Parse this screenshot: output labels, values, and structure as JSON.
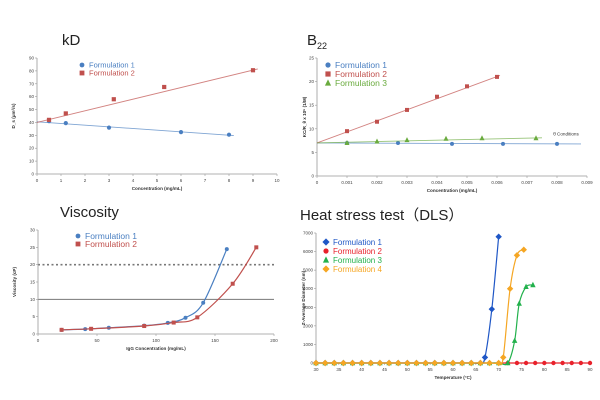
{
  "chart_data": [
    {
      "type": "scatter",
      "title": "kD",
      "xlabel": "Concentration (mg/mL)",
      "ylabel": "D_s (μm²/s)",
      "xlim": [
        0,
        10
      ],
      "ylim": [
        0,
        90
      ],
      "xticks": [
        "0",
        "1",
        "2",
        "3",
        "4",
        "5",
        "6",
        "7",
        "8",
        "9",
        "10"
      ],
      "yticks": [
        "0",
        "10",
        "20",
        "30",
        "40",
        "50",
        "60",
        "70",
        "80",
        "90"
      ],
      "grid": false,
      "legend": "top-left",
      "series": [
        {
          "name": "Formulation 1",
          "color": "#4a7fc1",
          "marker": "circle",
          "points": [
            [
              0.5,
              41
            ],
            [
              1.2,
              39.5
            ],
            [
              3,
              36
            ],
            [
              6,
              32.5
            ],
            [
              8,
              30.5
            ]
          ],
          "trend": [
            [
              0,
              40.5
            ],
            [
              8.2,
              29.8
            ]
          ]
        },
        {
          "name": "Formulation 2",
          "color": "#c0504d",
          "marker": "square",
          "points": [
            [
              0.5,
              42
            ],
            [
              1.2,
              47
            ],
            [
              3.2,
              58
            ],
            [
              5.3,
              67.5
            ],
            [
              9,
              80.5
            ]
          ],
          "trend": [
            [
              0,
              40
            ],
            [
              9.2,
              81.5
            ]
          ]
        }
      ]
    },
    {
      "type": "scatter",
      "title": "B",
      "title_sub": "22",
      "xlabel": "Concentration (mg/mL)",
      "ylabel": "KC/R_θ x 10⁶ (1/M)",
      "xlim": [
        0,
        0.009
      ],
      "ylim": [
        0,
        25
      ],
      "xticks": [
        "0",
        "0.001",
        "0.002",
        "0.003",
        "0.004",
        "0.005",
        "0.006",
        "0.007",
        "0.008",
        "0.009"
      ],
      "yticks": [
        "0",
        "5",
        "10",
        "15",
        "20",
        "25"
      ],
      "grid": false,
      "legend": "top-left",
      "annotation": "θ Conditions",
      "series": [
        {
          "name": "Formulation 1",
          "color": "#4a7fc1",
          "marker": "circle",
          "points": [
            [
              0.001,
              7
            ],
            [
              0.0027,
              7
            ],
            [
              0.0045,
              6.8
            ],
            [
              0.0062,
              6.8
            ],
            [
              0.008,
              6.8
            ]
          ],
          "trend": [
            [
              0,
              7
            ],
            [
              0.0088,
              6.8
            ]
          ]
        },
        {
          "name": "Formulation 2",
          "color": "#c0504d",
          "marker": "square",
          "points": [
            [
              0.001,
              9.5
            ],
            [
              0.002,
              11.5
            ],
            [
              0.003,
              14
            ],
            [
              0.004,
              16.8
            ],
            [
              0.005,
              19
            ],
            [
              0.006,
              21
            ]
          ],
          "trend": [
            [
              0,
              7
            ],
            [
              0.0061,
              21.3
            ]
          ]
        },
        {
          "name": "Formulation 3",
          "color": "#6aab3e",
          "marker": "triangle",
          "points": [
            [
              0.001,
              7
            ],
            [
              0.002,
              7.3
            ],
            [
              0.003,
              7.6
            ],
            [
              0.0043,
              7.9
            ],
            [
              0.0055,
              8
            ],
            [
              0.0073,
              8
            ]
          ],
          "trend": [
            [
              0,
              7
            ],
            [
              0.0075,
              8.1
            ]
          ]
        }
      ]
    },
    {
      "type": "line",
      "title": "Viscosity",
      "xlabel": "IgG Concentration (mg/mL)",
      "ylabel": "Viscosity (cP)",
      "xlim": [
        0,
        200
      ],
      "ylim": [
        0,
        30
      ],
      "xticks": [
        "0",
        "50",
        "100",
        "150",
        "200"
      ],
      "yticks": [
        "0",
        "5",
        "10",
        "15",
        "20",
        "25",
        "30"
      ],
      "grid": false,
      "legend": "top-left",
      "reference_lines": [
        {
          "y": 20,
          "style": "dotted"
        },
        {
          "y": 10,
          "style": "solid"
        }
      ],
      "series": [
        {
          "name": "Formulation 1",
          "color": "#4a7fc1",
          "marker": "circle",
          "points": [
            [
              20,
              1.2
            ],
            [
              40,
              1.4
            ],
            [
              60,
              1.8
            ],
            [
              90,
              2.4
            ],
            [
              110,
              3.2
            ],
            [
              125,
              4.7
            ],
            [
              140,
              9
            ],
            [
              160,
              24.5
            ]
          ]
        },
        {
          "name": "Formulation 2",
          "color": "#c0504d",
          "marker": "square",
          "points": [
            [
              20,
              1.2
            ],
            [
              45,
              1.5
            ],
            [
              90,
              2.3
            ],
            [
              115,
              3.3
            ],
            [
              135,
              4.8
            ],
            [
              165,
              14.5
            ],
            [
              185,
              25
            ]
          ]
        }
      ]
    },
    {
      "type": "line",
      "title": "Heat stress test（DLS）",
      "xlabel": "Temperature (°C)",
      "ylabel": "Z-Average Diameter (nm)",
      "xlim": [
        30,
        90
      ],
      "ylim": [
        0,
        7000
      ],
      "xticks": [
        "30",
        "35",
        "40",
        "45",
        "50",
        "55",
        "60",
        "65",
        "70",
        "75",
        "80",
        "85",
        "90"
      ],
      "yticks": [
        "0",
        "1000",
        "2000",
        "3000",
        "4000",
        "5000",
        "6000",
        "7000"
      ],
      "grid": false,
      "legend": "top-left",
      "series": [
        {
          "name": "Formulation 1",
          "color": "#1f57c6",
          "marker": "diamond",
          "points": [
            [
              30,
              0
            ],
            [
              32,
              0
            ],
            [
              34,
              0
            ],
            [
              36,
              0
            ],
            [
              38,
              0
            ],
            [
              40,
              0
            ],
            [
              42,
              0
            ],
            [
              44,
              0
            ],
            [
              46,
              0
            ],
            [
              48,
              0
            ],
            [
              50,
              0
            ],
            [
              52,
              0
            ],
            [
              54,
              0
            ],
            [
              56,
              0
            ],
            [
              58,
              0
            ],
            [
              60,
              0
            ],
            [
              62,
              0
            ],
            [
              64,
              0
            ],
            [
              66,
              0
            ],
            [
              67,
              300
            ],
            [
              68.5,
              2900
            ],
            [
              70,
              6800
            ]
          ]
        },
        {
          "name": "Formulation 2",
          "color": "#e8212b",
          "marker": "circle",
          "points": [
            [
              30,
              0
            ],
            [
              32,
              0
            ],
            [
              34,
              0
            ],
            [
              36,
              0
            ],
            [
              38,
              0
            ],
            [
              40,
              0
            ],
            [
              42,
              0
            ],
            [
              44,
              0
            ],
            [
              46,
              0
            ],
            [
              48,
              0
            ],
            [
              50,
              0
            ],
            [
              52,
              0
            ],
            [
              54,
              0
            ],
            [
              56,
              0
            ],
            [
              58,
              0
            ],
            [
              60,
              0
            ],
            [
              62,
              0
            ],
            [
              64,
              0
            ],
            [
              66,
              0
            ],
            [
              68,
              0
            ],
            [
              70,
              0
            ],
            [
              72,
              0
            ],
            [
              74,
              0
            ],
            [
              76,
              0
            ],
            [
              78,
              0
            ],
            [
              80,
              0
            ],
            [
              82,
              0
            ],
            [
              84,
              0
            ],
            [
              86,
              0
            ],
            [
              88,
              0
            ],
            [
              90,
              0
            ]
          ]
        },
        {
          "name": "Formulation 3",
          "color": "#22b14c",
          "marker": "triangle",
          "points": [
            [
              30,
              0
            ],
            [
              32,
              0
            ],
            [
              34,
              0
            ],
            [
              36,
              0
            ],
            [
              38,
              0
            ],
            [
              40,
              0
            ],
            [
              42,
              0
            ],
            [
              44,
              0
            ],
            [
              46,
              0
            ],
            [
              48,
              0
            ],
            [
              50,
              0
            ],
            [
              52,
              0
            ],
            [
              54,
              0
            ],
            [
              56,
              0
            ],
            [
              58,
              0
            ],
            [
              60,
              0
            ],
            [
              62,
              0
            ],
            [
              64,
              0
            ],
            [
              66,
              0
            ],
            [
              68,
              0
            ],
            [
              70,
              0
            ],
            [
              72,
              0
            ],
            [
              73.5,
              1200
            ],
            [
              74.5,
              3200
            ],
            [
              76,
              4100
            ],
            [
              77.5,
              4200
            ]
          ]
        },
        {
          "name": "Formulation 4",
          "color": "#f5a623",
          "marker": "diamond",
          "points": [
            [
              30,
              0
            ],
            [
              32,
              0
            ],
            [
              34,
              0
            ],
            [
              36,
              0
            ],
            [
              38,
              0
            ],
            [
              40,
              0
            ],
            [
              42,
              0
            ],
            [
              44,
              0
            ],
            [
              46,
              0
            ],
            [
              48,
              0
            ],
            [
              50,
              0
            ],
            [
              52,
              0
            ],
            [
              54,
              0
            ],
            [
              56,
              0
            ],
            [
              58,
              0
            ],
            [
              60,
              0
            ],
            [
              62,
              0
            ],
            [
              64,
              0
            ],
            [
              66,
              0
            ],
            [
              68,
              0
            ],
            [
              70,
              0
            ],
            [
              71,
              300
            ],
            [
              72.5,
              4000
            ],
            [
              74,
              5800
            ],
            [
              75.5,
              6100
            ]
          ]
        }
      ]
    }
  ]
}
